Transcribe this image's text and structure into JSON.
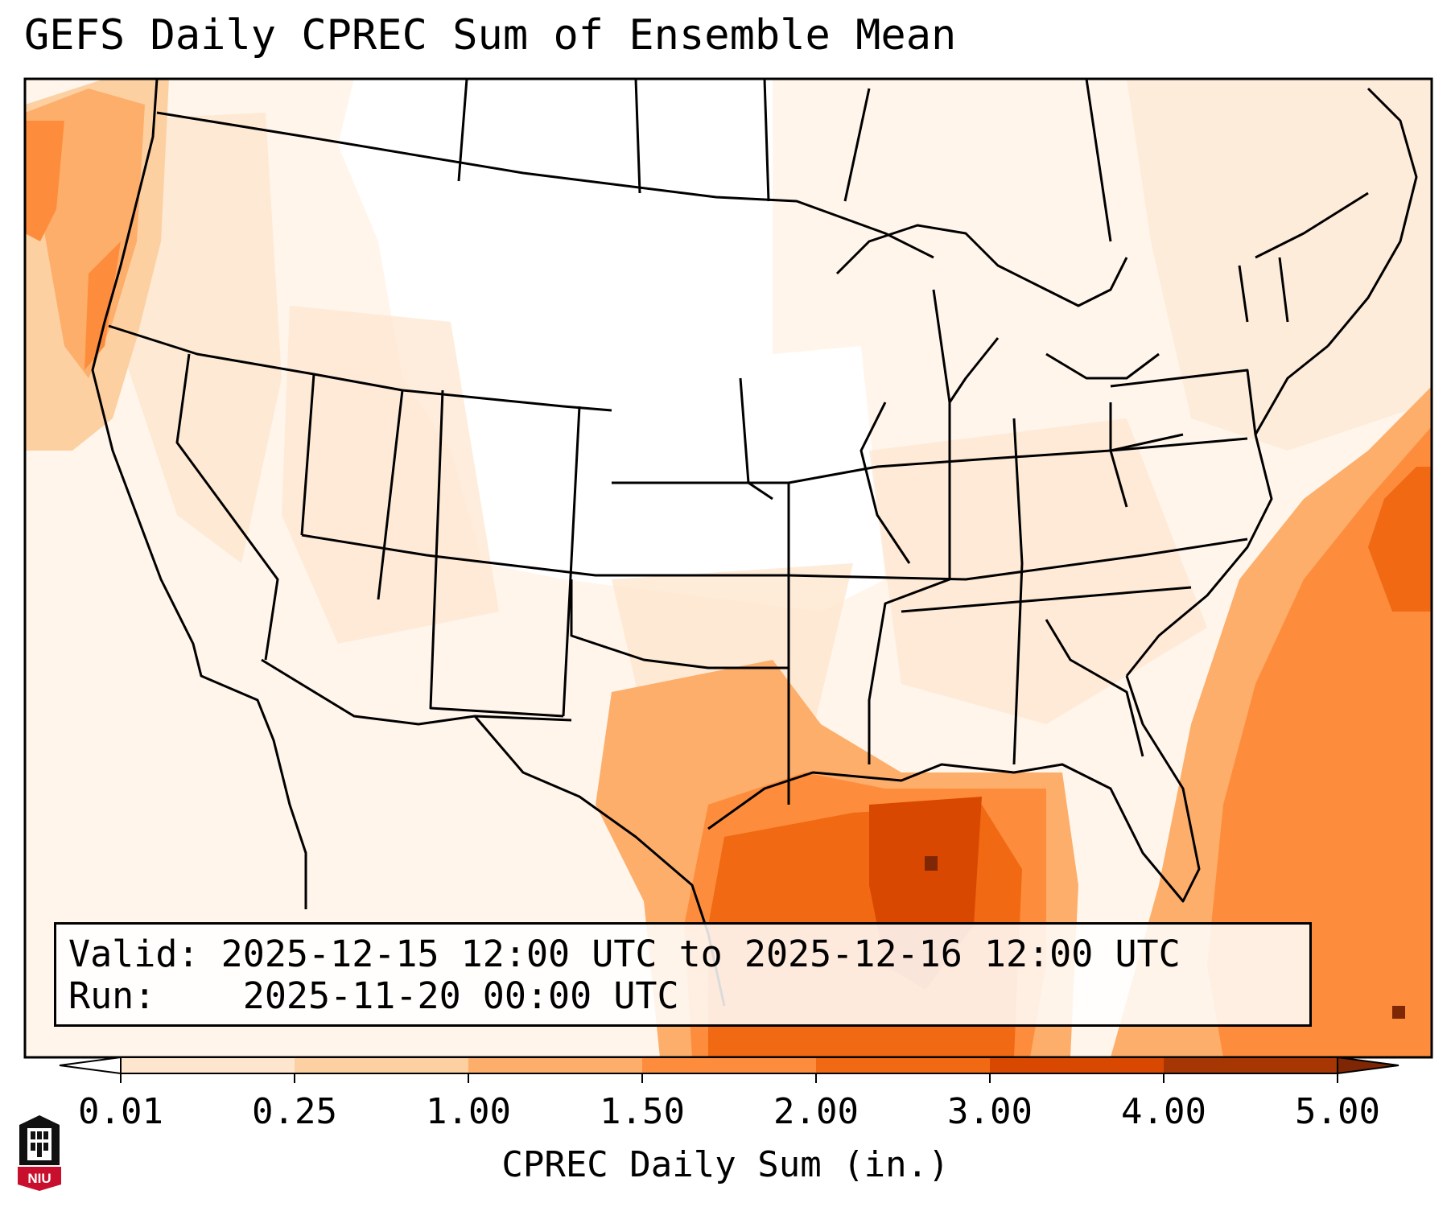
{
  "title": "GEFS Daily CPREC Sum of Ensemble Mean",
  "info": {
    "valid_label": "Valid:",
    "valid_value": "2025-12-15 12:00 UTC to 2025-12-16 12:00 UTC",
    "run_label": "Run:",
    "run_value": "2025-11-20 00:00 UTC"
  },
  "colorbar": {
    "title": "CPREC Daily Sum (in.)",
    "ticks": [
      "0.01",
      "0.25",
      "1.00",
      "1.50",
      "2.00",
      "3.00",
      "4.00",
      "5.00"
    ],
    "colors": [
      "#fff5eb",
      "#fee6ce",
      "#fdd0a2",
      "#fdae6b",
      "#fd8d3c",
      "#f16913",
      "#d94801",
      "#a63603"
    ],
    "over_color": "#7f2704",
    "under_color": "#ffffff"
  },
  "logo": {
    "text": "NIU",
    "color": "#c8102e"
  }
}
